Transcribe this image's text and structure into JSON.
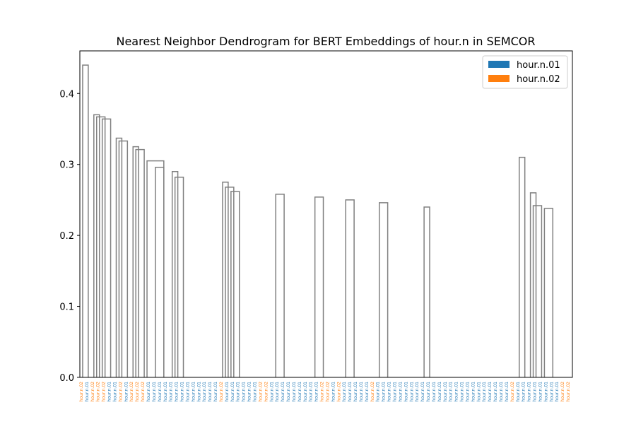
{
  "chart_data": {
    "type": "dendrogram",
    "title": "Nearest Neighbor Dendrogram for BERT Embeddings of hour.n in SEMCOR",
    "ylim": [
      0,
      0.46
    ],
    "yticks": [
      0.0,
      0.1,
      0.2,
      0.3,
      0.4
    ],
    "ytick_labels": [
      "0.0",
      "0.1",
      "0.2",
      "0.3",
      "0.4"
    ],
    "legend_position": "top-right",
    "legend": [
      {
        "label": "hour.n.01",
        "color": "#1f77b4"
      },
      {
        "label": "hour.n.02",
        "color": "#ff7f0e"
      }
    ],
    "link_color": "#808080",
    "leaves": [
      {
        "label": "hour.n.02",
        "sense": 2
      },
      {
        "label": "hour.n.01",
        "sense": 1
      },
      {
        "label": "hour.n.02",
        "sense": 2
      },
      {
        "label": "hour.n.02",
        "sense": 2
      },
      {
        "label": "hour.n.02",
        "sense": 2
      },
      {
        "label": "hour.n.01",
        "sense": 1
      },
      {
        "label": "hour.n.01",
        "sense": 1
      },
      {
        "label": "hour.n.02",
        "sense": 2
      },
      {
        "label": "hour.n.01",
        "sense": 1
      },
      {
        "label": "hour.n.02",
        "sense": 2
      },
      {
        "label": "hour.n.02",
        "sense": 2
      },
      {
        "label": "hour.n.02",
        "sense": 2
      },
      {
        "label": "hour.n.01",
        "sense": 1
      },
      {
        "label": "hour.n.01",
        "sense": 1
      },
      {
        "label": "hour.n.01",
        "sense": 1
      },
      {
        "label": "hour.n.01",
        "sense": 1
      },
      {
        "label": "hour.n.01",
        "sense": 1
      },
      {
        "label": "hour.n.01",
        "sense": 1
      },
      {
        "label": "hour.n.01",
        "sense": 1
      },
      {
        "label": "hour.n.01",
        "sense": 1
      },
      {
        "label": "hour.n.01",
        "sense": 1
      },
      {
        "label": "hour.n.01",
        "sense": 1
      },
      {
        "label": "hour.n.01",
        "sense": 1
      },
      {
        "label": "hour.n.01",
        "sense": 1
      },
      {
        "label": "hour.n.01",
        "sense": 1
      },
      {
        "label": "hour.n.02",
        "sense": 2
      },
      {
        "label": "hour.n.01",
        "sense": 1
      },
      {
        "label": "hour.n.01",
        "sense": 1
      },
      {
        "label": "hour.n.01",
        "sense": 1
      },
      {
        "label": "hour.n.01",
        "sense": 1
      },
      {
        "label": "hour.n.01",
        "sense": 1
      },
      {
        "label": "hour.n.01",
        "sense": 1
      },
      {
        "label": "hour.n.02",
        "sense": 2
      },
      {
        "label": "hour.n.02",
        "sense": 2
      },
      {
        "label": "hour.n.01",
        "sense": 1
      },
      {
        "label": "hour.n.01",
        "sense": 1
      },
      {
        "label": "hour.n.01",
        "sense": 1
      },
      {
        "label": "hour.n.01",
        "sense": 1
      },
      {
        "label": "hour.n.01",
        "sense": 1
      },
      {
        "label": "hour.n.01",
        "sense": 1
      },
      {
        "label": "hour.n.01",
        "sense": 1
      },
      {
        "label": "hour.n.01",
        "sense": 1
      },
      {
        "label": "hour.n.01",
        "sense": 1
      },
      {
        "label": "hour.n.02",
        "sense": 2
      },
      {
        "label": "hour.n.02",
        "sense": 2
      },
      {
        "label": "hour.n.01",
        "sense": 1
      },
      {
        "label": "hour.n.02",
        "sense": 2
      },
      {
        "label": "hour.n.01",
        "sense": 1
      },
      {
        "label": "hour.n.01",
        "sense": 1
      },
      {
        "label": "hour.n.01",
        "sense": 1
      },
      {
        "label": "hour.n.01",
        "sense": 1
      },
      {
        "label": "hour.n.01",
        "sense": 1
      },
      {
        "label": "hour.n.02",
        "sense": 2
      },
      {
        "label": "hour.n.01",
        "sense": 1
      },
      {
        "label": "hour.n.01",
        "sense": 1
      },
      {
        "label": "hour.n.01",
        "sense": 1
      },
      {
        "label": "hour.n.01",
        "sense": 1
      },
      {
        "label": "hour.n.01",
        "sense": 1
      },
      {
        "label": "hour.n.01",
        "sense": 1
      },
      {
        "label": "hour.n.01",
        "sense": 1
      },
      {
        "label": "hour.n.01",
        "sense": 1
      },
      {
        "label": "hour.n.01",
        "sense": 1
      },
      {
        "label": "hour.n.01",
        "sense": 1
      },
      {
        "label": "hour.n.01",
        "sense": 1
      },
      {
        "label": "hour.n.01",
        "sense": 1
      },
      {
        "label": "hour.n.01",
        "sense": 1
      },
      {
        "label": "hour.n.01",
        "sense": 1
      },
      {
        "label": "hour.n.01",
        "sense": 1
      },
      {
        "label": "hour.n.01",
        "sense": 1
      },
      {
        "label": "hour.n.01",
        "sense": 1
      },
      {
        "label": "hour.n.01",
        "sense": 1
      },
      {
        "label": "hour.n.01",
        "sense": 1
      },
      {
        "label": "hour.n.01",
        "sense": 1
      },
      {
        "label": "hour.n.01",
        "sense": 1
      },
      {
        "label": "hour.n.01",
        "sense": 1
      },
      {
        "label": "hour.n.01",
        "sense": 1
      },
      {
        "label": "hour.n.01",
        "sense": 1
      },
      {
        "label": "hour.n.02",
        "sense": 2
      },
      {
        "label": "hour.n.01",
        "sense": 1
      },
      {
        "label": "hour.n.01",
        "sense": 1
      },
      {
        "label": "hour.n.01",
        "sense": 1
      },
      {
        "label": "hour.n.01",
        "sense": 1
      },
      {
        "label": "hour.n.01",
        "sense": 1
      },
      {
        "label": "hour.n.01",
        "sense": 1
      },
      {
        "label": "hour.n.01",
        "sense": 1
      },
      {
        "label": "hour.n.01",
        "sense": 1
      },
      {
        "label": "hour.n.02",
        "sense": 2
      },
      {
        "label": "hour.n.02",
        "sense": 2
      }
    ],
    "merges": [
      {
        "x1": 0.5,
        "x2": 1.5,
        "h": 0.44
      },
      {
        "x1": 2.5,
        "x2": 3.5,
        "h": 0.37
      },
      {
        "x1": 3.0,
        "x2": 4.5,
        "h": 0.367
      },
      {
        "x1": 4.0,
        "x2": 5.5,
        "h": 0.364
      },
      {
        "x1": 6.5,
        "x2": 7.5,
        "h": 0.337
      },
      {
        "x1": 7.0,
        "x2": 8.5,
        "h": 0.333
      },
      {
        "x1": 9.5,
        "x2": 10.5,
        "h": 0.325
      },
      {
        "x1": 10.0,
        "x2": 11.5,
        "h": 0.321
      },
      {
        "x1": 12.0,
        "x2": 15.0,
        "h": 0.305
      },
      {
        "x1": 13.5,
        "x2": 15.0,
        "h": 0.296
      },
      {
        "x1": 16.5,
        "x2": 17.5,
        "h": 0.29
      },
      {
        "x1": 17.0,
        "x2": 18.5,
        "h": 0.282
      },
      {
        "x1": 25.5,
        "x2": 26.5,
        "h": 0.275
      },
      {
        "x1": 26.0,
        "x2": 27.5,
        "h": 0.268
      },
      {
        "x1": 27.0,
        "x2": 28.5,
        "h": 0.262
      },
      {
        "x1": 35.0,
        "x2": 36.5,
        "h": 0.258
      },
      {
        "x1": 42.0,
        "x2": 43.5,
        "h": 0.254
      },
      {
        "x1": 47.5,
        "x2": 49.0,
        "h": 0.25
      },
      {
        "x1": 53.5,
        "x2": 55.0,
        "h": 0.246
      },
      {
        "x1": 61.5,
        "x2": 62.5,
        "h": 0.24
      },
      {
        "x1": 78.5,
        "x2": 79.5,
        "h": 0.31
      },
      {
        "x1": 80.5,
        "x2": 81.5,
        "h": 0.26
      },
      {
        "x1": 81.0,
        "x2": 82.5,
        "h": 0.242
      },
      {
        "x1": 83.0,
        "x2": 84.5,
        "h": 0.238
      }
    ]
  }
}
